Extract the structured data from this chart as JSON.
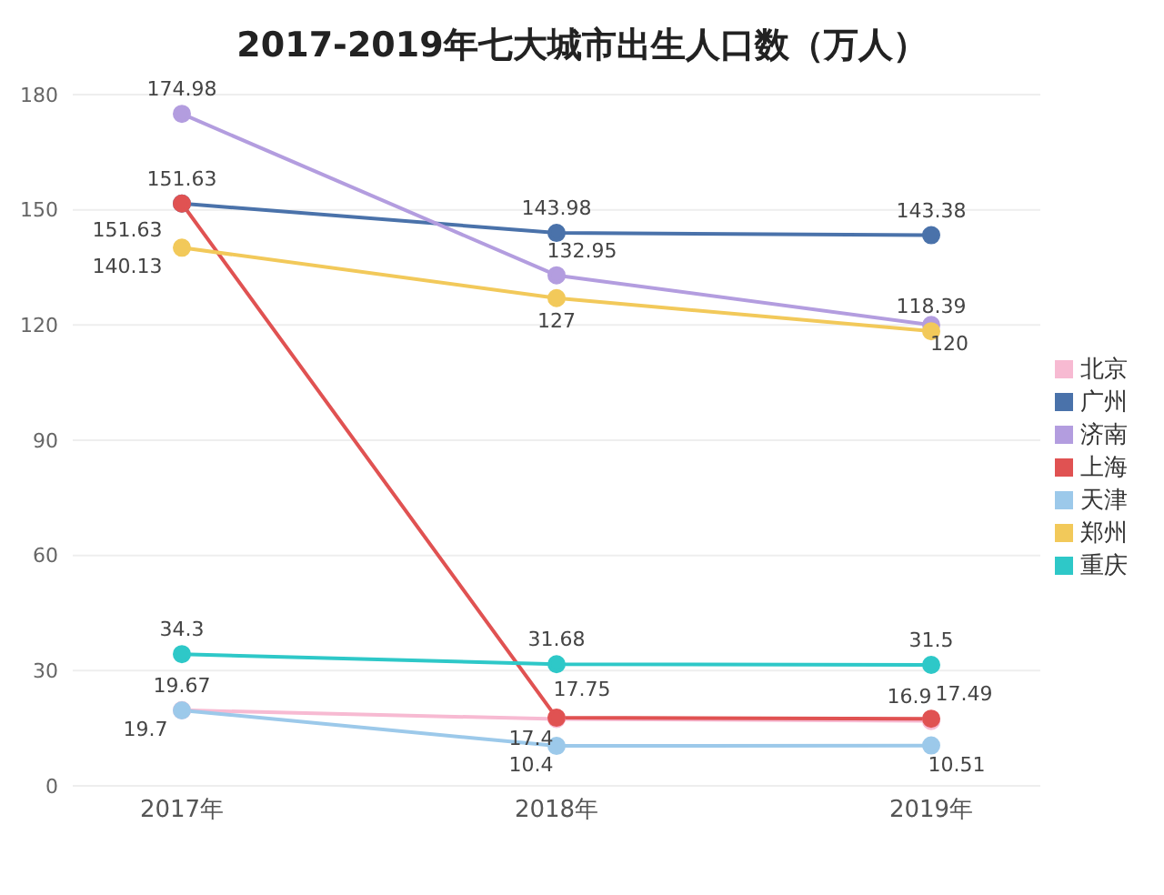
{
  "chart_data": {
    "type": "line",
    "title": "2017-2019年七大城市出生人口数（万人）",
    "categories": [
      "2017年",
      "2018年",
      "2019年"
    ],
    "series": [
      {
        "name": "北京",
        "color": "#f7bad2",
        "values": [
          19.7,
          17.4,
          16.9
        ]
      },
      {
        "name": "广州",
        "color": "#4a72aa",
        "values": [
          151.63,
          143.98,
          143.38
        ]
      },
      {
        "name": "济南",
        "color": "#b39ddf",
        "values": [
          174.98,
          132.95,
          120
        ]
      },
      {
        "name": "上海",
        "color": "#e05252",
        "values": [
          151.63,
          17.75,
          17.49
        ]
      },
      {
        "name": "天津",
        "color": "#9cc9ea",
        "values": [
          19.67,
          10.4,
          10.51
        ]
      },
      {
        "name": "郑州",
        "color": "#f2c95a",
        "values": [
          140.13,
          127,
          118.39
        ]
      },
      {
        "name": "重庆",
        "color": "#2ec8c8",
        "values": [
          34.3,
          31.68,
          31.5
        ]
      }
    ],
    "ylim": [
      0,
      180
    ],
    "yticks": [
      0,
      30,
      60,
      90,
      120,
      150,
      180
    ],
    "grid": "y",
    "legend": "right",
    "marker": "circle",
    "line_style": "solid",
    "data_labels": true
  }
}
